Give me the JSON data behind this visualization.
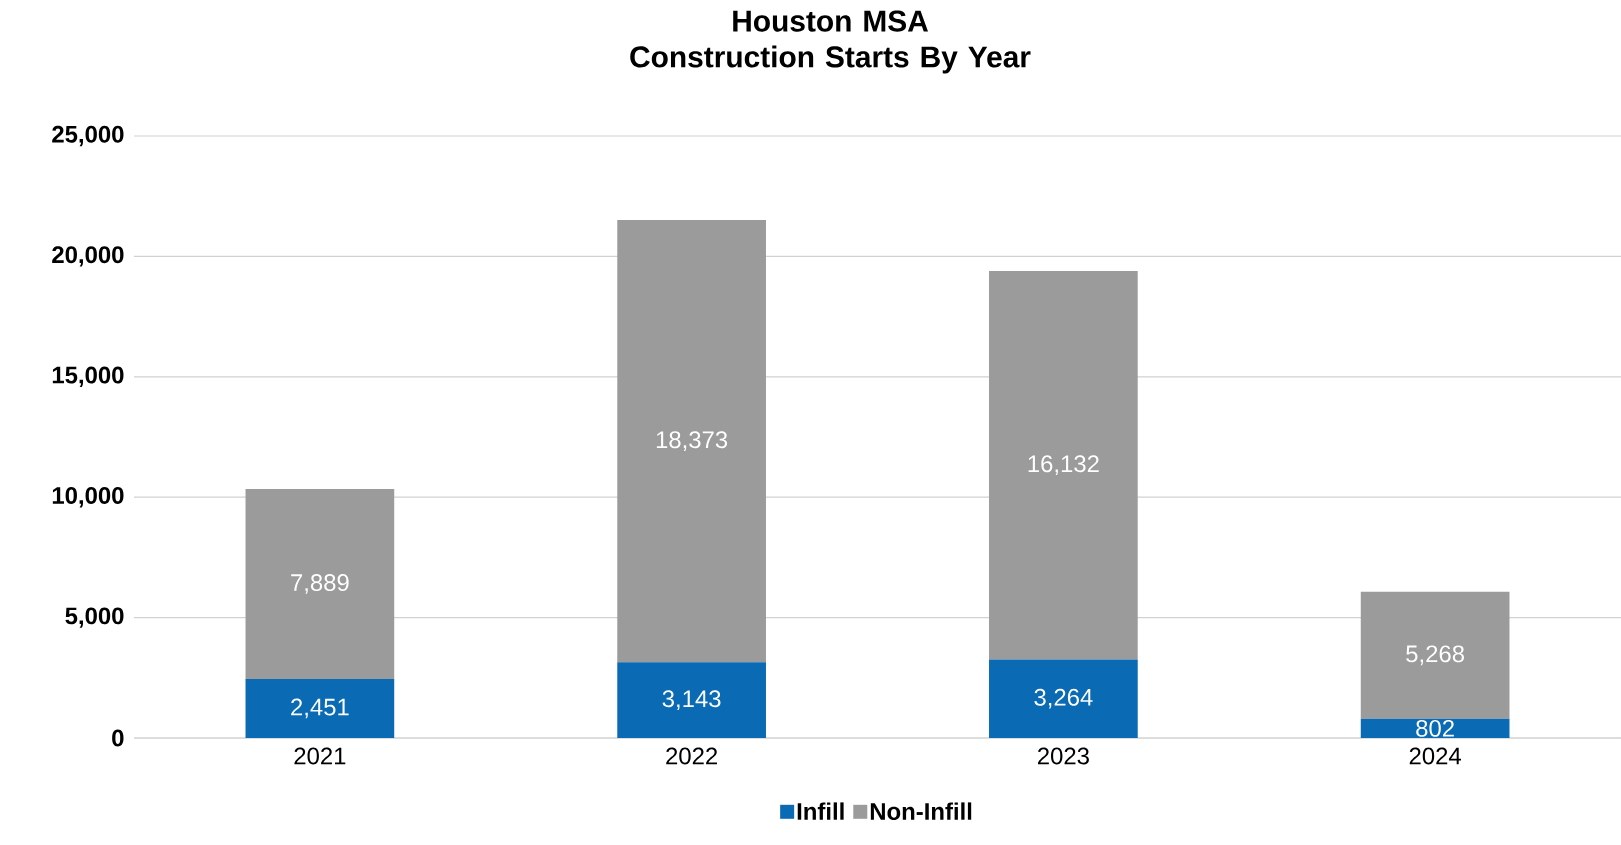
{
  "chart_data": {
    "type": "bar",
    "stacked": true,
    "title": "Houston MSA\nConstruction Starts By Year",
    "categories": [
      "2021",
      "2022",
      "2023",
      "2024"
    ],
    "series": [
      {
        "name": "Infill",
        "color": "#0a6ab4",
        "values": [
          2451,
          3143,
          3264,
          802
        ],
        "value_labels": [
          "2,451",
          "3,143",
          "3,264",
          "802"
        ]
      },
      {
        "name": "Non-Infill",
        "color": "#9b9b9b",
        "values": [
          7889,
          18373,
          16132,
          5268
        ],
        "value_labels": [
          "7,889",
          "18,373",
          "16,132",
          "5,268"
        ]
      }
    ],
    "ylim": [
      0,
      25000
    ],
    "yticks": [
      0,
      {
        "value": 5000,
        "label": "5,000"
      },
      {
        "value": 10000,
        "label": "10,000"
      },
      {
        "value": 15000,
        "label": "15,000"
      },
      {
        "value": 20000,
        "label": "20,000"
      },
      {
        "value": 25000,
        "label": "25,000"
      }
    ],
    "grid": "y",
    "legend": "bottom"
  }
}
